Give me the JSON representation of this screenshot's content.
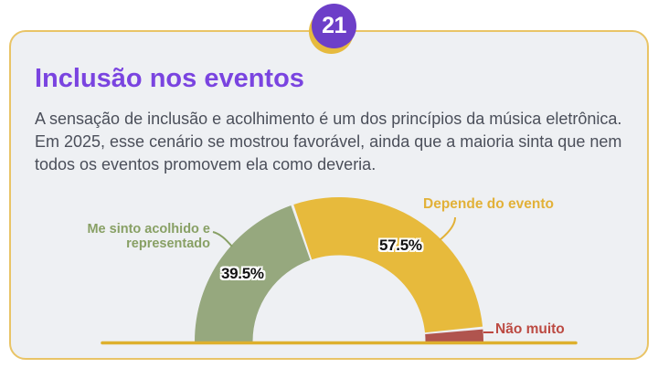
{
  "badge": {
    "number": "21"
  },
  "header": {
    "title": "Inclusão nos eventos"
  },
  "intro": {
    "text": "A sensação de inclusão e acolhimento é um dos princípios da música eletrônica. Em 2025, esse cenário se mostrou favorável, ainda que a maioria sinta que nem todos os eventos promovem ela como deveria."
  },
  "colors": {
    "title_purple": "#7a44e0",
    "badge_purple": "#6d3fc8",
    "badge_gold": "#e6ba3e",
    "card_border_gold": "#e9c466",
    "card_background": "#eef0f3",
    "body_text": "#4b4f5a"
  },
  "chart_data": {
    "type": "pie",
    "subtype": "semi-donut gauge (180°, drawn left to right)",
    "title": "",
    "unit": "%",
    "total": 100,
    "segments": [
      {
        "label": "Me sinto acolhido e representado",
        "value": 39.5,
        "value_label": "39.5%",
        "color": "#96a87e",
        "label_color": "#88a065"
      },
      {
        "label": "Depende do evento",
        "value": 57.5,
        "value_label": "57.5%",
        "color": "#e7ba3c",
        "label_color": "#e2b138"
      },
      {
        "label": "Não muito",
        "value": 3,
        "value_label": "",
        "color": "#b0544e",
        "label_color": "#bc4a42"
      }
    ],
    "baseline_color": "#deb02d",
    "legend_position": "callout labels around arc",
    "grid": false
  }
}
